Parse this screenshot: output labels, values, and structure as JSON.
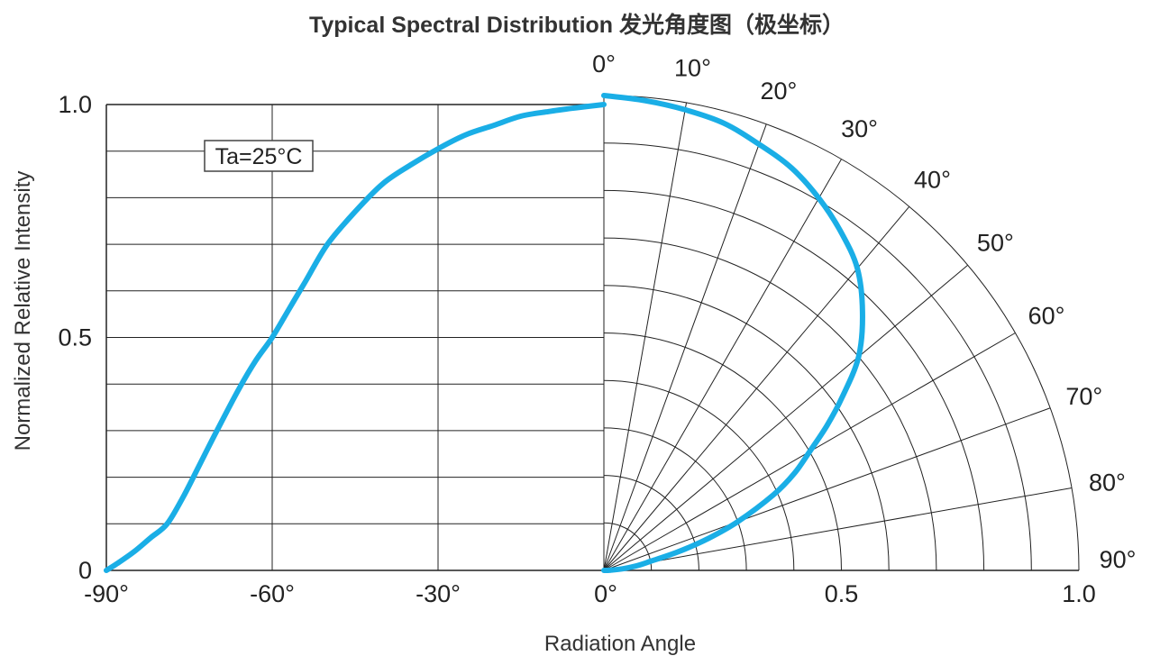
{
  "chart_data": {
    "type": "line",
    "title": "Typical Spectral Distribution 发光角度图（极坐标）",
    "xlabel": "Radiation Angle",
    "ylabel": "Normalized Relative Intensity",
    "annotation": "Ta=25°C",
    "xlim": [
      -90,
      0
    ],
    "ylim": [
      0,
      1
    ],
    "x_ticks": [
      "-90°",
      "-60°",
      "-30°",
      "0°"
    ],
    "y_ticks": [
      "0",
      "0.5",
      "1.0"
    ],
    "polar_angle_labels": [
      "0°",
      "10°",
      "20°",
      "30°",
      "40°",
      "50°",
      "60°",
      "70°",
      "80°",
      "90°"
    ],
    "polar_radius_ticks": [
      "0.5",
      "1.0"
    ],
    "grid": true,
    "color": "#1aaee6",
    "series": [
      {
        "x": [
          -90,
          -88,
          -85,
          -82,
          -79,
          -76,
          -73,
          -70,
          -66,
          -63,
          -60,
          -57,
          -54,
          -50,
          -45,
          -40,
          -35,
          -30,
          -25,
          -20,
          -15,
          -10,
          -5,
          0
        ],
        "values": [
          0.0,
          0.015,
          0.04,
          0.07,
          0.1,
          0.16,
          0.23,
          0.3,
          0.39,
          0.45,
          0.5,
          0.56,
          0.62,
          0.7,
          0.77,
          0.83,
          0.87,
          0.905,
          0.935,
          0.955,
          0.975,
          0.985,
          0.993,
          1.0
        ]
      }
    ]
  }
}
